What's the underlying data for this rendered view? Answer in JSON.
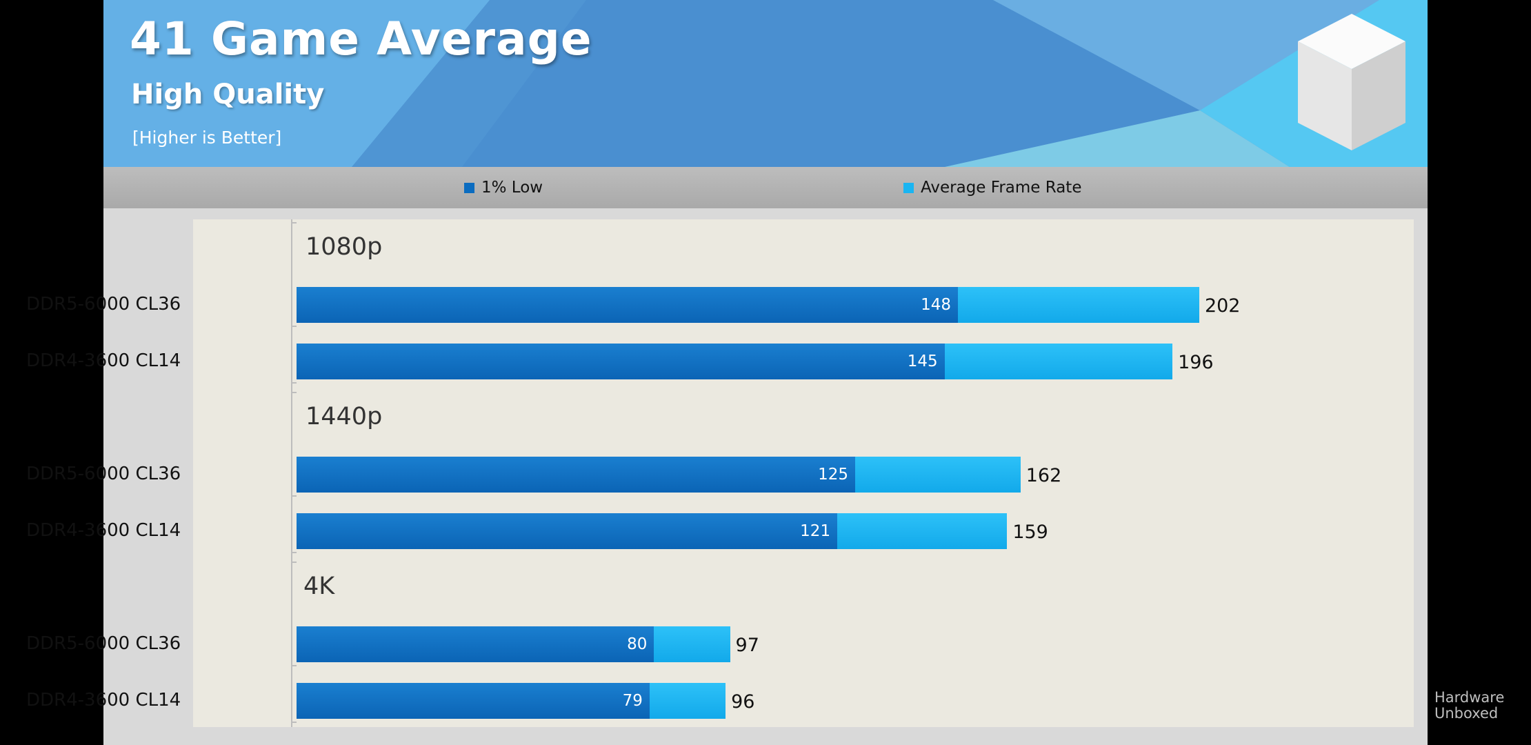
{
  "header": {
    "title": "41 Game Average",
    "subtitle": "High Quality",
    "note": "[Higher is Better]"
  },
  "legend": {
    "low_label": "1% Low",
    "avg_label": "Average Frame Rate"
  },
  "colors": {
    "low": "#0b6cc0",
    "avg": "#1ab5f2",
    "plot_bg": "#ebe9e0",
    "banner": "#5aa6df"
  },
  "watermark": {
    "line1": "Hardware",
    "line2": "Unboxed"
  },
  "chart_data": {
    "type": "bar",
    "orientation": "horizontal",
    "title": "41 Game Average",
    "subtitle": "High Quality",
    "note": "[Higher is Better]",
    "xlim": [
      0,
      230
    ],
    "grid": false,
    "legend_position": "top-center",
    "series": [
      {
        "name": "1% Low",
        "color": "#0b6cc0"
      },
      {
        "name": "Average Frame Rate",
        "color": "#1ab5f2"
      }
    ],
    "groups": [
      {
        "label": "1080p",
        "rows": [
          {
            "label": "DDR5-6000 CL36",
            "low": 148,
            "avg": 202
          },
          {
            "label": "DDR4-3600 CL14",
            "low": 145,
            "avg": 196
          }
        ]
      },
      {
        "label": "1440p",
        "rows": [
          {
            "label": "DDR5-6000 CL36",
            "low": 125,
            "avg": 162
          },
          {
            "label": "DDR4-3600 CL14",
            "low": 121,
            "avg": 159
          }
        ]
      },
      {
        "label": "4K",
        "rows": [
          {
            "label": "DDR5-6000 CL36",
            "low": 80,
            "avg": 97
          },
          {
            "label": "DDR4-3600 CL14",
            "low": 79,
            "avg": 96
          }
        ]
      }
    ]
  }
}
